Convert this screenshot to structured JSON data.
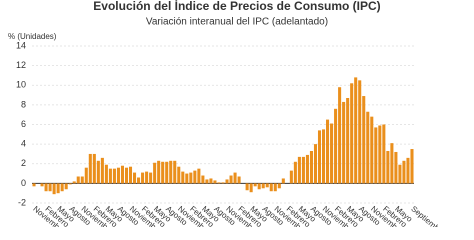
{
  "chart_data": {
    "type": "bar",
    "title": "Evolución del Índice de Precios de Consumo (IPC)",
    "subtitle": "Variación interanual del IPC (adelantado)",
    "y_label": "% (Unidades)",
    "color": "#ea8f1c",
    "grid": true,
    "ylim": [
      -2,
      14
    ],
    "yticks": [
      -2,
      0,
      2,
      4,
      6,
      8,
      10,
      12,
      14
    ],
    "categories": [
      "Noviembre",
      null,
      null,
      "Febrero",
      null,
      null,
      "Mayo",
      null,
      null,
      "Agosto",
      null,
      null,
      "Noviembre",
      null,
      null,
      "Febrero",
      null,
      null,
      "Mayo",
      null,
      null,
      "Agosto",
      null,
      null,
      "Noviembre",
      null,
      null,
      "Febrero",
      null,
      null,
      "Mayo",
      null,
      null,
      "Agosto",
      null,
      null,
      "Noviembre",
      null,
      null,
      "Febrero",
      null,
      null,
      "Mayo",
      null,
      null,
      "Agosto",
      null,
      null,
      "Noviembre",
      null,
      null,
      "Febrero",
      null,
      null,
      "Mayo",
      null,
      null,
      "Agosto",
      null,
      null,
      "Noviembre",
      null,
      null,
      "Febrero",
      null,
      null,
      "Mayo",
      null,
      null,
      "Agosto",
      null,
      null,
      "Noviembre",
      null,
      null,
      "Febrero",
      null,
      null,
      "Mayo",
      null,
      null,
      "Agosto",
      null,
      null,
      "Noviembre",
      null,
      null,
      "Febrero",
      null,
      null,
      "Mayo",
      null,
      null,
      null,
      "Septiembre"
    ],
    "values": [
      -0.3,
      0.0,
      -0.3,
      -0.8,
      -0.8,
      -1.1,
      -1.0,
      -0.8,
      -0.6,
      -0.1,
      0.2,
      0.7,
      0.7,
      1.6,
      3.0,
      3.0,
      2.3,
      2.6,
      1.9,
      1.5,
      1.5,
      1.6,
      1.8,
      1.6,
      1.7,
      1.1,
      0.6,
      1.1,
      1.2,
      1.1,
      2.1,
      2.3,
      2.2,
      2.2,
      2.3,
      2.3,
      1.7,
      1.2,
      1.0,
      1.1,
      1.3,
      1.5,
      0.8,
      0.4,
      0.5,
      0.3,
      0.1,
      0.1,
      0.4,
      0.8,
      1.1,
      0.7,
      0.0,
      -0.7,
      -0.9,
      -0.3,
      -0.6,
      -0.5,
      -0.4,
      -0.8,
      -0.8,
      -0.5,
      0.5,
      0.0,
      1.3,
      2.2,
      2.7,
      2.7,
      2.9,
      3.3,
      4.0,
      5.4,
      5.5,
      6.5,
      6.1,
      7.6,
      9.8,
      8.3,
      8.7,
      10.2,
      10.8,
      10.5,
      8.9,
      7.3,
      6.8,
      5.7,
      5.9,
      6.0,
      3.3,
      4.1,
      3.2,
      1.9,
      2.3,
      2.6,
      3.5
    ]
  }
}
